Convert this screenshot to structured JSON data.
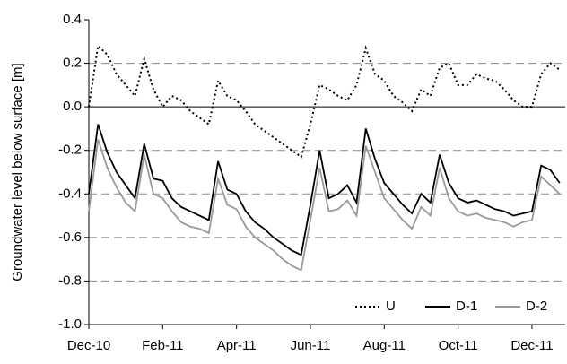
{
  "chart_data": {
    "type": "line",
    "y_label": "Groundwater level below surface [m]",
    "x": [
      0,
      0.25,
      0.5,
      0.75,
      1,
      1.25,
      1.5,
      1.75,
      2,
      2.25,
      2.5,
      2.75,
      3,
      3.25,
      3.5,
      3.75,
      4,
      4.25,
      4.5,
      4.75,
      5,
      5.25,
      5.5,
      5.75,
      6,
      6.25,
      6.5,
      6.75,
      7,
      7.25,
      7.5,
      7.75,
      8,
      8.25,
      8.5,
      8.75,
      9,
      9.25,
      9.5,
      9.75,
      10,
      10.25,
      10.5,
      10.75,
      11,
      11.25,
      11.5,
      11.75,
      12,
      12.25,
      12.5,
      12.75
    ],
    "series": [
      {
        "name": "U",
        "color": "#000000",
        "dash": "dotted",
        "values": [
          0.0,
          0.28,
          0.24,
          0.15,
          0.1,
          0.05,
          0.22,
          0.08,
          0.0,
          0.05,
          0.03,
          -0.02,
          -0.05,
          -0.08,
          0.12,
          0.05,
          0.03,
          -0.02,
          -0.08,
          -0.11,
          -0.14,
          -0.17,
          -0.2,
          -0.23,
          -0.08,
          0.1,
          0.08,
          0.05,
          0.03,
          0.1,
          0.27,
          0.15,
          0.12,
          0.05,
          0.02,
          -0.02,
          0.08,
          0.05,
          0.18,
          0.2,
          0.1,
          0.1,
          0.15,
          0.13,
          0.12,
          0.08,
          0.03,
          0.0,
          0.0,
          0.15,
          0.2,
          0.17
        ]
      },
      {
        "name": "D-1",
        "color": "#000000",
        "dash": "solid",
        "values": [
          -0.4,
          -0.08,
          -0.21,
          -0.3,
          -0.36,
          -0.42,
          -0.17,
          -0.33,
          -0.34,
          -0.42,
          -0.46,
          -0.48,
          -0.5,
          -0.52,
          -0.25,
          -0.38,
          -0.4,
          -0.48,
          -0.53,
          -0.56,
          -0.6,
          -0.63,
          -0.66,
          -0.68,
          -0.45,
          -0.2,
          -0.42,
          -0.4,
          -0.36,
          -0.44,
          -0.1,
          -0.24,
          -0.35,
          -0.4,
          -0.45,
          -0.49,
          -0.4,
          -0.44,
          -0.22,
          -0.35,
          -0.42,
          -0.44,
          -0.43,
          -0.45,
          -0.47,
          -0.48,
          -0.5,
          -0.49,
          -0.48,
          -0.27,
          -0.29,
          -0.35
        ]
      },
      {
        "name": "D-2",
        "color": "#999999",
        "dash": "solid",
        "values": [
          -0.48,
          -0.15,
          -0.28,
          -0.37,
          -0.44,
          -0.48,
          -0.22,
          -0.4,
          -0.42,
          -0.48,
          -0.53,
          -0.55,
          -0.56,
          -0.58,
          -0.33,
          -0.45,
          -0.47,
          -0.55,
          -0.6,
          -0.63,
          -0.66,
          -0.7,
          -0.73,
          -0.75,
          -0.52,
          -0.28,
          -0.48,
          -0.47,
          -0.43,
          -0.5,
          -0.18,
          -0.3,
          -0.42,
          -0.47,
          -0.52,
          -0.56,
          -0.46,
          -0.5,
          -0.28,
          -0.42,
          -0.48,
          -0.5,
          -0.49,
          -0.51,
          -0.52,
          -0.53,
          -0.55,
          -0.53,
          -0.52,
          -0.32,
          -0.36,
          -0.4
        ]
      }
    ],
    "xlim": [
      0,
      12.9
    ],
    "xticks": [
      {
        "value": 0,
        "label": "Dec-10"
      },
      {
        "value": 2,
        "label": "Feb-11"
      },
      {
        "value": 4,
        "label": "Apr-11"
      },
      {
        "value": 6,
        "label": "Jun-11"
      },
      {
        "value": 8,
        "label": "Aug-11"
      },
      {
        "value": 10,
        "label": "Oct-11"
      },
      {
        "value": 12,
        "label": "Dec-11"
      }
    ],
    "ylim": [
      -1.0,
      0.4
    ],
    "yticks": [
      0.4,
      0.2,
      {
        "value": 0,
        "label": "0.0"
      },
      -0.2,
      -0.4,
      -0.6,
      -0.8,
      {
        "value": -1,
        "label": "-1.0"
      }
    ],
    "grid": true,
    "legend": "lower right"
  }
}
